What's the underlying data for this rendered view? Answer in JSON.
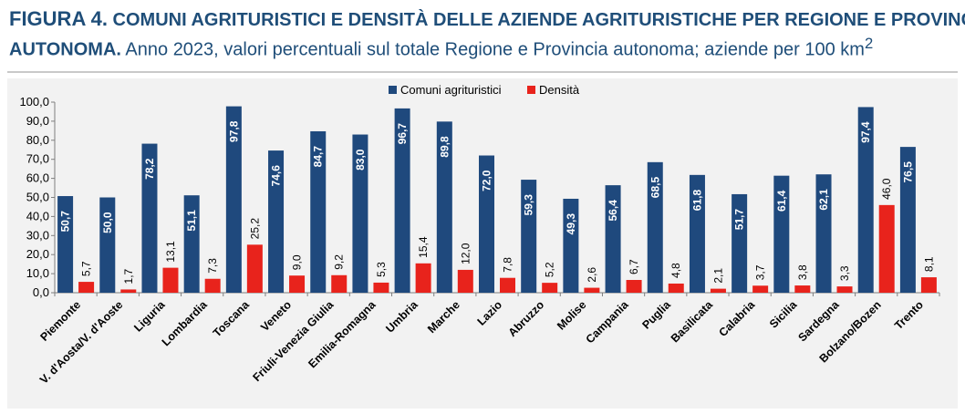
{
  "header": {
    "fig_label": "FIGURA 4.",
    "title_part1": " COMUNI AGRITURISTICI E DENSITÀ DELLE AZIENDE AGRITURISTICHE PER REGIONE E PROVINCIA",
    "title_part2": "AUTONOMA.",
    "subtitle": " Anno 2023, valori percentuali sul totale Regione e Provincia autonoma; aziende per 100 km",
    "subtitle_sup": "2"
  },
  "colors": {
    "title": "#1f4e79",
    "series_comuni": "#1f497d",
    "series_densita": "#e8231c",
    "background": "#f2f2f2"
  },
  "chart_data": {
    "type": "bar",
    "categories": [
      "Piemonte",
      "V. d'Aosta/V. d'Aoste",
      "Liguria",
      "Lombardia",
      "Toscana",
      "Veneto",
      "Friuli-Venezia Giulia",
      "Emilia-Romagna",
      "Umbria",
      "Marche",
      "Lazio",
      "Abruzzo",
      "Molise",
      "Campania",
      "Puglia",
      "Basilicata",
      "Calabria",
      "Sicilia",
      "Sardegna",
      "Bolzano/Bozen",
      "Trento"
    ],
    "series": [
      {
        "name": "Comuni agrituristici",
        "values": [
          50.7,
          50.0,
          78.2,
          51.1,
          97.8,
          74.6,
          84.7,
          83.0,
          96.7,
          89.8,
          72.0,
          59.3,
          49.3,
          56.4,
          68.5,
          61.8,
          51.7,
          61.4,
          62.1,
          97.4,
          76.5
        ],
        "labels": [
          "50,7",
          "50,0",
          "78,2",
          "51,1",
          "97,8",
          "74,6",
          "84,7",
          "83,0",
          "96,7",
          "89,8",
          "72,0",
          "59,3",
          "49,3",
          "56,4",
          "68,5",
          "61,8",
          "51,7",
          "61,4",
          "62,1",
          "97,4",
          "76,5"
        ]
      },
      {
        "name": "Densità",
        "values": [
          5.7,
          1.7,
          13.1,
          7.3,
          25.2,
          9.0,
          9.2,
          5.3,
          15.4,
          12.0,
          7.8,
          5.2,
          2.6,
          6.7,
          4.8,
          2.1,
          3.7,
          3.8,
          3.3,
          46.0,
          8.1
        ],
        "labels": [
          "5,7",
          "1,7",
          "13,1",
          "7,3",
          "25,2",
          "9,0",
          "9,2",
          "5,3",
          "15,4",
          "12,0",
          "7,8",
          "5,2",
          "2,6",
          "6,7",
          "4,8",
          "2,1",
          "3,7",
          "3,8",
          "3,3",
          "46,0",
          "8,1"
        ]
      }
    ],
    "yticks": [
      "0,0",
      "10,0",
      "20,0",
      "30,0",
      "40,0",
      "50,0",
      "60,0",
      "70,0",
      "80,0",
      "90,0",
      "100,0"
    ],
    "ylim": [
      0,
      100
    ],
    "xlabel": "",
    "ylabel": "",
    "grid": false,
    "legend": "top-center"
  }
}
